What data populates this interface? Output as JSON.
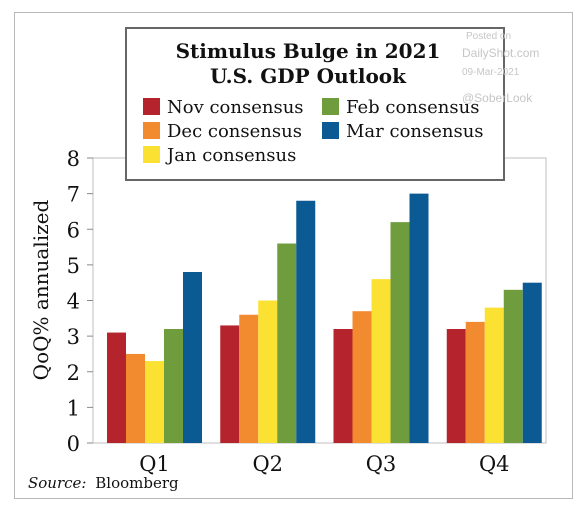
{
  "chart_data": {
    "type": "bar",
    "title_line1": "Stimulus Bulge in 2021",
    "title_line2": "U.S. GDP Outlook",
    "ylabel": "QoQ% annualized",
    "xlabel": "",
    "categories": [
      "Q1",
      "Q2",
      "Q3",
      "Q4"
    ],
    "ylim": [
      0,
      8
    ],
    "yticks": [
      0,
      1,
      2,
      3,
      4,
      5,
      6,
      7,
      8
    ],
    "series": [
      {
        "name": "Nov consensus",
        "color": "#b5242c",
        "values": [
          3.1,
          3.3,
          3.2,
          3.2
        ]
      },
      {
        "name": "Dec consensus",
        "color": "#f28a30",
        "values": [
          2.5,
          3.6,
          3.7,
          3.4
        ]
      },
      {
        "name": "Jan consensus",
        "color": "#fbe131",
        "values": [
          2.3,
          4.0,
          4.6,
          3.8
        ]
      },
      {
        "name": "Feb consensus",
        "color": "#6f9d3e",
        "values": [
          3.2,
          5.6,
          6.2,
          4.3
        ]
      },
      {
        "name": "Mar consensus",
        "color": "#0c5a94",
        "values": [
          4.8,
          6.8,
          7.0,
          4.5
        ]
      }
    ],
    "grid": false,
    "legend_placement": "top"
  },
  "source": {
    "label": "Source:",
    "text": "Bloomberg"
  },
  "watermark": {
    "posted_on": "Posted on",
    "site": "DailyShot.com",
    "date": "09-Mar-2021",
    "handle": "@SoberLook"
  }
}
